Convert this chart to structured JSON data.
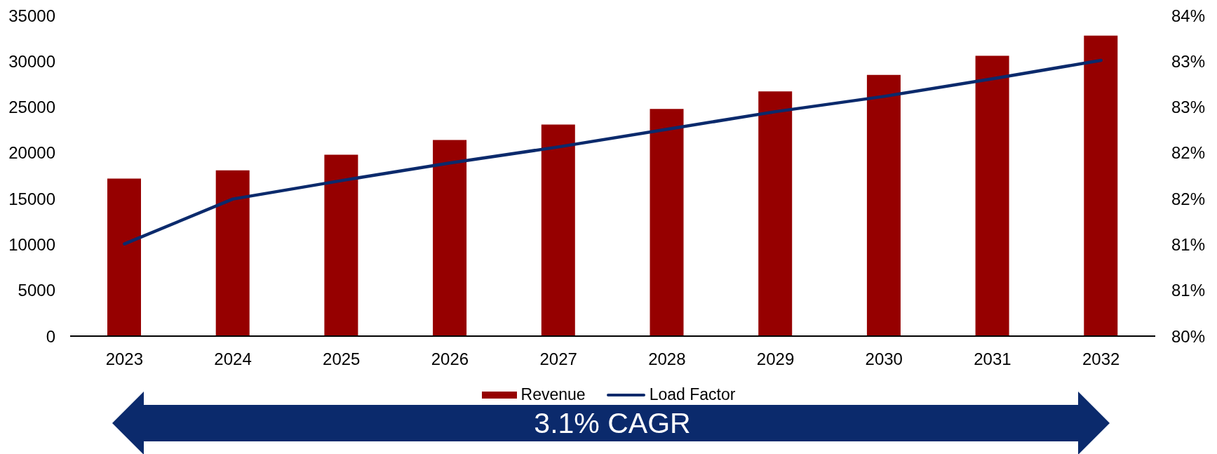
{
  "chart_data": {
    "type": "bar",
    "categories": [
      "2023",
      "2024",
      "2025",
      "2026",
      "2027",
      "2028",
      "2029",
      "2030",
      "2031",
      "2032"
    ],
    "series": [
      {
        "name": "Revenue",
        "color": "#960000",
        "values": [
          17200,
          18100,
          19800,
          21400,
          23100,
          24800,
          26700,
          28500,
          30600,
          32800
        ]
      },
      {
        "name": "Load Factor",
        "type": "line",
        "axis": "y2",
        "color": "#0b2a6c",
        "values": [
          81.15,
          81.71,
          81.94,
          82.16,
          82.36,
          82.58,
          82.8,
          82.99,
          83.21,
          83.44
        ]
      }
    ],
    "ylim": [
      0,
      35000
    ],
    "yticks": [
      0,
      5000,
      10000,
      15000,
      20000,
      25000,
      30000,
      35000
    ],
    "y2lim": [
      80,
      84
    ],
    "y2ticks": [
      {
        "value": 80,
        "label": "80%"
      },
      {
        "value": 80.57,
        "label": "81%"
      },
      {
        "value": 81.14,
        "label": "81%"
      },
      {
        "value": 81.71,
        "label": "82%"
      },
      {
        "value": 82.29,
        "label": "82%"
      },
      {
        "value": 82.86,
        "label": "83%"
      },
      {
        "value": 83.43,
        "label": "83%"
      },
      {
        "value": 84,
        "label": "84%"
      }
    ],
    "legend": "bottom",
    "marker": "none",
    "annotations": [
      "3.1% CAGR"
    ]
  }
}
